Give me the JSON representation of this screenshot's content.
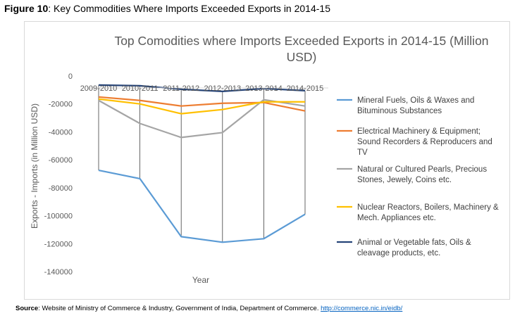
{
  "figure": {
    "label": "Figure 10",
    "caption": ": Key Commodities Where Imports Exceeded Exports in 2014-15"
  },
  "source": {
    "label": "Source",
    "text": ": Website of Ministry of Commerce & Industry, Government of India, Department of Commerce.",
    "link": "http://commerce.nic.in/eidb/"
  },
  "chart_data": {
    "type": "line",
    "title_lines": [
      "Top Comodities where Imports Exceeded Exports in 2014-15 (Million",
      "USD)"
    ],
    "xlabel": "Year",
    "ylabel": "Exports - Imports (in Million USD)",
    "categories": [
      "2009-2010",
      "2010-2011",
      "2011-2012",
      "2012-2013",
      "2013-2014",
      "2014-2015"
    ],
    "ylim": [
      -140000,
      0
    ],
    "yticks": [
      0,
      -20000,
      -40000,
      -60000,
      -80000,
      -100000,
      -120000,
      -140000
    ],
    "ytick_labels": [
      "0",
      "-20000",
      "-40000",
      "-60000",
      "-80000",
      "-100000",
      "-120000",
      "-140000"
    ],
    "legend_position": "right",
    "drop_lines": true,
    "series": [
      {
        "name": "Mineral Fuels, Oils & Waxes and Bituminous Substances",
        "legend_lines": [
          "Mineral Fuels, Oils & Waxes and",
          "Bituminous Substances"
        ],
        "color": "#5b9bd5",
        "values": [
          -67500,
          -73500,
          -115000,
          -119000,
          -116500,
          -99000
        ]
      },
      {
        "name": "Electrical Machinery & Equipment; Sound Recorders & Reproducers and TV",
        "legend_lines": [
          "Electrical Machinery & Equipment;",
          "Sound Recorders & Reproducers and",
          "TV"
        ],
        "color": "#ed7d31",
        "values": [
          -15000,
          -17500,
          -21500,
          -19500,
          -19000,
          -25000
        ]
      },
      {
        "name": "Natural or Cultured Pearls, Precious Stones, Jewely, Coins etc.",
        "legend_lines": [
          "Natural or Cultured Pearls, Precious",
          "Stones, Jewely, Coins etc."
        ],
        "color": "#a5a5a5",
        "values": [
          -17500,
          -34000,
          -44000,
          -40500,
          -17000,
          -21500
        ]
      },
      {
        "name": "Nuclear Reactors, Boilers, Machinery & Mech. Appliances etc.",
        "legend_lines": [
          "Nuclear Reactors, Boilers, Machinery &",
          "Mech. Appliances etc."
        ],
        "color": "#ffc000",
        "values": [
          -16500,
          -20000,
          -27000,
          -24000,
          -18500,
          -18500
        ]
      },
      {
        "name": "Animal or Vegetable fats, Oils & cleavage products, etc.",
        "legend_lines": [
          "Animal or Vegetable fats, Oils &",
          "cleavage products,  etc."
        ],
        "color": "#264478",
        "values": [
          -6500,
          -7000,
          -9500,
          -11000,
          -9000,
          -10500
        ]
      }
    ]
  }
}
